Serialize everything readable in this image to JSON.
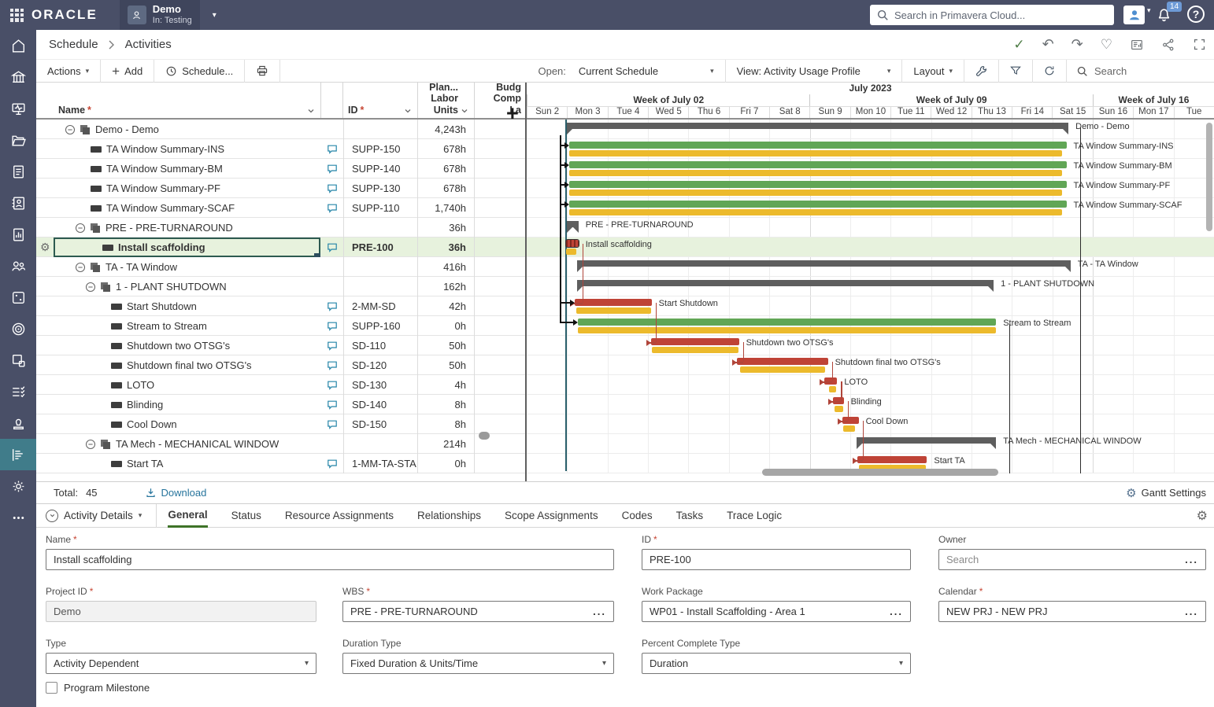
{
  "topbar": {
    "brand": "ORACLE",
    "project_name": "Demo",
    "project_context": "In: Testing",
    "search_placeholder": "Search in Primavera Cloud...",
    "notification_count": "14"
  },
  "sidebar": {
    "items": [
      {
        "icon": "home-icon"
      },
      {
        "icon": "portfolios-icon"
      },
      {
        "icon": "dashboards-icon"
      },
      {
        "icon": "projects-icon"
      },
      {
        "icon": "documents-icon"
      },
      {
        "icon": "directory-icon"
      },
      {
        "icon": "reports-icon"
      },
      {
        "icon": "resources-icon"
      },
      {
        "icon": "risk-icon"
      },
      {
        "icon": "objectives-icon"
      },
      {
        "icon": "workflow-icon"
      },
      {
        "icon": "tasks-icon"
      },
      {
        "icon": "approvals-icon"
      },
      {
        "icon": "activities-icon",
        "active": true
      },
      {
        "icon": "settings-icon"
      },
      {
        "icon": "more-icon"
      }
    ]
  },
  "breadcrumb": {
    "items": [
      "Schedule",
      "Activities"
    ]
  },
  "crumb_icons": [
    "check-icon",
    "undo-icon",
    "redo-icon",
    "health-icon",
    "report-icon",
    "share-icon",
    "expand-icon"
  ],
  "toolbar": {
    "actions_label": "Actions",
    "add_label": "Add",
    "schedule_label": "Schedule...",
    "open_label": "Open:",
    "open_value": "Current Schedule",
    "view_value": "View: Activity Usage Profile",
    "layout_label": "Layout",
    "search_placeholder": "Search"
  },
  "table": {
    "columns": {
      "name": "Name",
      "id": "ID",
      "units": "Plan...\nLabor\nUnits",
      "budget": "Budg\nComp\nLa"
    },
    "rows": [
      {
        "name": "Demo - Demo",
        "id": "",
        "units": "4,243h",
        "level": 0,
        "kind": "wbs",
        "toggle": true
      },
      {
        "name": "TA Window Summary-INS",
        "id": "SUPP-150",
        "units": "678h",
        "level": 1,
        "kind": "activity",
        "comment": true
      },
      {
        "name": "TA Window Summary-BM",
        "id": "SUPP-140",
        "units": "678h",
        "level": 1,
        "kind": "activity",
        "comment": true
      },
      {
        "name": "TA Window Summary-PF",
        "id": "SUPP-130",
        "units": "678h",
        "level": 1,
        "kind": "activity",
        "comment": true
      },
      {
        "name": "TA Window Summary-SCAF",
        "id": "SUPP-110",
        "units": "1,740h",
        "level": 1,
        "kind": "activity",
        "comment": true
      },
      {
        "name": "PRE - PRE-TURNAROUND",
        "id": "",
        "units": "36h",
        "level": 1,
        "kind": "wbs",
        "toggle": true
      },
      {
        "name": "Install scaffolding",
        "id": "PRE-100",
        "units": "36h",
        "level": 2,
        "kind": "activity",
        "comment": true,
        "selected": true
      },
      {
        "name": "TA - TA Window",
        "id": "",
        "units": "416h",
        "level": 1,
        "kind": "wbs",
        "toggle": true
      },
      {
        "name": "1 - PLANT SHUTDOWN",
        "id": "",
        "units": "162h",
        "level": 2,
        "kind": "wbs",
        "toggle": true
      },
      {
        "name": "Start Shutdown",
        "id": "2-MM-SD",
        "units": "42h",
        "level": 3,
        "kind": "activity",
        "comment": true
      },
      {
        "name": "Stream to Stream",
        "id": "SUPP-160",
        "units": "0h",
        "level": 3,
        "kind": "activity",
        "comment": true
      },
      {
        "name": "Shutdown two OTSG's",
        "id": "SD-110",
        "units": "50h",
        "level": 3,
        "kind": "activity",
        "comment": true
      },
      {
        "name": "Shutdown final two OTSG's",
        "id": "SD-120",
        "units": "50h",
        "level": 3,
        "kind": "activity",
        "comment": true
      },
      {
        "name": "LOTO",
        "id": "SD-130",
        "units": "4h",
        "level": 3,
        "kind": "activity",
        "comment": true
      },
      {
        "name": "Blinding",
        "id": "SD-140",
        "units": "8h",
        "level": 3,
        "kind": "activity",
        "comment": true
      },
      {
        "name": "Cool Down",
        "id": "SD-150",
        "units": "8h",
        "level": 3,
        "kind": "activity",
        "comment": true
      },
      {
        "name": "TA Mech - MECHANICAL WINDOW",
        "id": "",
        "units": "214h",
        "level": 2,
        "kind": "wbs",
        "toggle": true
      },
      {
        "name": "Start TA",
        "id": "1-MM-TA-STA",
        "units": "0h",
        "level": 3,
        "kind": "activity",
        "comment": true
      }
    ],
    "footer": {
      "total_label": "Total:",
      "total_value": "45",
      "download_label": "Download"
    }
  },
  "gantt": {
    "month": "July 2023",
    "weeks": [
      {
        "label": "Week of July 02",
        "span": 7
      },
      {
        "label": "Week of July 09",
        "span": 7
      },
      {
        "label": "Week of July 16",
        "span": 3
      }
    ],
    "days": [
      "Sun 2",
      "Mon 3",
      "Tue 4",
      "Wed 5",
      "Thu 6",
      "Fri 7",
      "Sat 8",
      "Sun 9",
      "Mon 10",
      "Tue 11",
      "Wed 12",
      "Thu 13",
      "Fri 14",
      "Sat 15",
      "Sun 16",
      "Mon 17",
      "Tue"
    ],
    "settings_label": "Gantt Settings",
    "data_date_day": 0.95,
    "rows": [
      {
        "label": "Demo - Demo",
        "bars": [
          {
            "type": "summary",
            "start": 1.0,
            "end": 13.4
          }
        ]
      },
      {
        "label": "TA Window Summary-INS",
        "bars": [
          {
            "type": "bar",
            "color": "green",
            "start": 1.05,
            "end": 13.35
          },
          {
            "type": "baseline",
            "start": 1.05,
            "end": 13.25
          }
        ]
      },
      {
        "label": "TA Window Summary-BM",
        "bars": [
          {
            "type": "bar",
            "color": "green",
            "start": 1.05,
            "end": 13.35
          },
          {
            "type": "baseline",
            "start": 1.05,
            "end": 13.25
          }
        ]
      },
      {
        "label": "TA Window Summary-PF",
        "bars": [
          {
            "type": "bar",
            "color": "green",
            "start": 1.05,
            "end": 13.35
          },
          {
            "type": "baseline",
            "start": 1.05,
            "end": 13.25
          }
        ]
      },
      {
        "label": "TA Window Summary-SCAF",
        "bars": [
          {
            "type": "bar",
            "color": "green",
            "start": 1.05,
            "end": 13.35
          },
          {
            "type": "baseline",
            "start": 1.05,
            "end": 13.25
          }
        ]
      },
      {
        "label": "PRE - PRE-TURNAROUND",
        "label_at_bar": true,
        "bars": [
          {
            "type": "summary",
            "start": 1.0,
            "end": 1.28
          }
        ]
      },
      {
        "label": "Install scaffolding",
        "selected": true,
        "bars": [
          {
            "type": "bar",
            "color": "red",
            "hatch": true,
            "start": 0.97,
            "end": 1.28
          },
          {
            "type": "baseline",
            "start": 0.97,
            "end": 1.22
          }
        ]
      },
      {
        "label": "TA - TA Window",
        "bars": [
          {
            "type": "summary",
            "start": 1.25,
            "end": 13.45
          }
        ]
      },
      {
        "label": "1 - PLANT SHUTDOWN",
        "bars": [
          {
            "type": "summary",
            "start": 1.25,
            "end": 11.55
          }
        ]
      },
      {
        "label": "Start Shutdown",
        "bars": [
          {
            "type": "bar",
            "color": "red",
            "start": 1.19,
            "end": 3.09
          },
          {
            "type": "baseline",
            "start": 1.22,
            "end": 3.07
          }
        ]
      },
      {
        "label": "Stream to Stream",
        "bars": [
          {
            "type": "bar",
            "color": "green",
            "start": 1.26,
            "end": 11.61
          },
          {
            "type": "baseline",
            "start": 1.26,
            "end": 11.61
          }
        ]
      },
      {
        "label": "Shutdown two OTSG's",
        "bars": [
          {
            "type": "bar",
            "color": "red",
            "start": 3.07,
            "end": 5.25
          },
          {
            "type": "baseline",
            "start": 3.1,
            "end": 5.23
          }
        ]
      },
      {
        "label": "Shutdown final two OTSG's",
        "bars": [
          {
            "type": "bar",
            "color": "red",
            "start": 5.19,
            "end": 7.45
          },
          {
            "type": "baseline",
            "start": 5.27,
            "end": 7.39
          }
        ]
      },
      {
        "label": "LOTO",
        "bars": [
          {
            "type": "bar",
            "color": "red",
            "start": 7.37,
            "end": 7.68
          },
          {
            "type": "baseline",
            "start": 7.47,
            "end": 7.66
          }
        ]
      },
      {
        "label": "Blinding",
        "bars": [
          {
            "type": "bar",
            "color": "red",
            "start": 7.57,
            "end": 7.84
          },
          {
            "type": "baseline",
            "start": 7.62,
            "end": 7.83
          }
        ]
      },
      {
        "label": "Cool Down",
        "bars": [
          {
            "type": "bar",
            "color": "red",
            "start": 7.8,
            "end": 8.21
          },
          {
            "type": "baseline",
            "start": 7.82,
            "end": 8.13
          }
        ]
      },
      {
        "label": "TA Mech - MECHANICAL WINDOW",
        "bars": [
          {
            "type": "summary",
            "start": 8.15,
            "end": 11.61
          }
        ]
      },
      {
        "label": "Start TA",
        "bars": [
          {
            "type": "bar",
            "color": "red",
            "start": 8.17,
            "end": 9.9
          },
          {
            "type": "baseline",
            "start": 8.21,
            "end": 9.88
          }
        ]
      }
    ],
    "links": [
      [
        6,
        9
      ],
      [
        9,
        11
      ],
      [
        11,
        12
      ],
      [
        12,
        13
      ],
      [
        13,
        14
      ],
      [
        14,
        15
      ],
      [
        15,
        17
      ]
    ],
    "start_arrow_rows": [
      1,
      2,
      3,
      4,
      9,
      10
    ],
    "guides": [
      {
        "day": 11.93,
        "from_row": 10
      },
      {
        "day": 13.68,
        "from_row": 0
      }
    ]
  },
  "details": {
    "selector_label": "Activity Details",
    "tabs": [
      "General",
      "Status",
      "Resource Assignments",
      "Relationships",
      "Scope Assignments",
      "Codes",
      "Tasks",
      "Trace Logic"
    ],
    "active_tab": "General",
    "fields": {
      "name": {
        "label": "Name",
        "value": "Install scaffolding"
      },
      "id": {
        "label": "ID",
        "value": "PRE-100"
      },
      "owner": {
        "label": "Owner",
        "placeholder": "Search"
      },
      "project_id": {
        "label": "Project ID",
        "value": "Demo"
      },
      "wbs": {
        "label": "WBS",
        "value": "PRE - PRE-TURNAROUND"
      },
      "work_package": {
        "label": "Work Package",
        "value": "WP01 - Install Scaffolding - Area 1"
      },
      "calendar": {
        "label": "Calendar",
        "value": "NEW PRJ - NEW PRJ"
      },
      "type": {
        "label": "Type",
        "value": "Activity Dependent"
      },
      "duration_type": {
        "label": "Duration Type",
        "value": "Fixed Duration & Units/Time"
      },
      "pct_type": {
        "label": "Percent Complete Type",
        "value": "Duration"
      },
      "program_milestone": {
        "label": "Program Milestone",
        "checked": false
      }
    }
  },
  "colors": {
    "topbar_bg": "#494f67",
    "sidebar_active": "#407c8a",
    "bar_green": "#61a656",
    "bar_yellow": "#ecba2c",
    "bar_red": "#bf4336",
    "bar_summary": "#5e5e5e",
    "selected_row_bg": "#e7f2dd",
    "tab_accent": "#3e7328",
    "required_asterisk": "#c74634",
    "link_color": "#26749c",
    "data_date": "#2a5f6b"
  }
}
